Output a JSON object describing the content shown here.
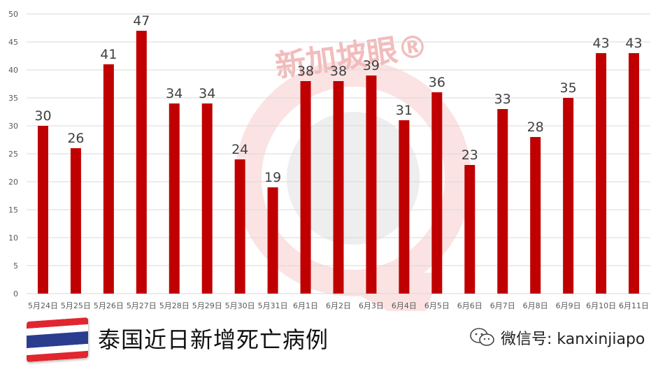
{
  "chart_data": {
    "type": "bar",
    "categories": [
      "5月24日",
      "5月25日",
      "5月26日",
      "5月27日",
      "5月28日",
      "5月29日",
      "5月30日",
      "5月31日",
      "6月1日",
      "6月2日",
      "6月3日",
      "6月4日",
      "6月5日",
      "6月6日",
      "6月7日",
      "6月8日",
      "6月9日",
      "6月10日",
      "6月11日"
    ],
    "values": [
      30,
      26,
      41,
      47,
      34,
      34,
      24,
      19,
      38,
      38,
      39,
      31,
      36,
      23,
      33,
      28,
      35,
      43,
      43
    ],
    "yticks": [
      0,
      5,
      10,
      15,
      20,
      25,
      30,
      35,
      40,
      45,
      50
    ],
    "ylim": [
      0,
      50
    ],
    "grid": true,
    "title": "",
    "xlabel": "",
    "ylabel": "",
    "bar_color": "#c00000"
  },
  "watermark": {
    "text": "新加坡眼®",
    "color": "#f2bcbc"
  },
  "caption": {
    "text": "泰国近日新增死亡病例"
  },
  "wechat": {
    "label": "微信号: kanxinjiapo",
    "icon": "wechat-icon"
  },
  "flag": {
    "name": "thailand-flag-icon",
    "colors": {
      "red": "#e0262f",
      "white": "#ffffff",
      "blue": "#2a3d8f"
    }
  }
}
